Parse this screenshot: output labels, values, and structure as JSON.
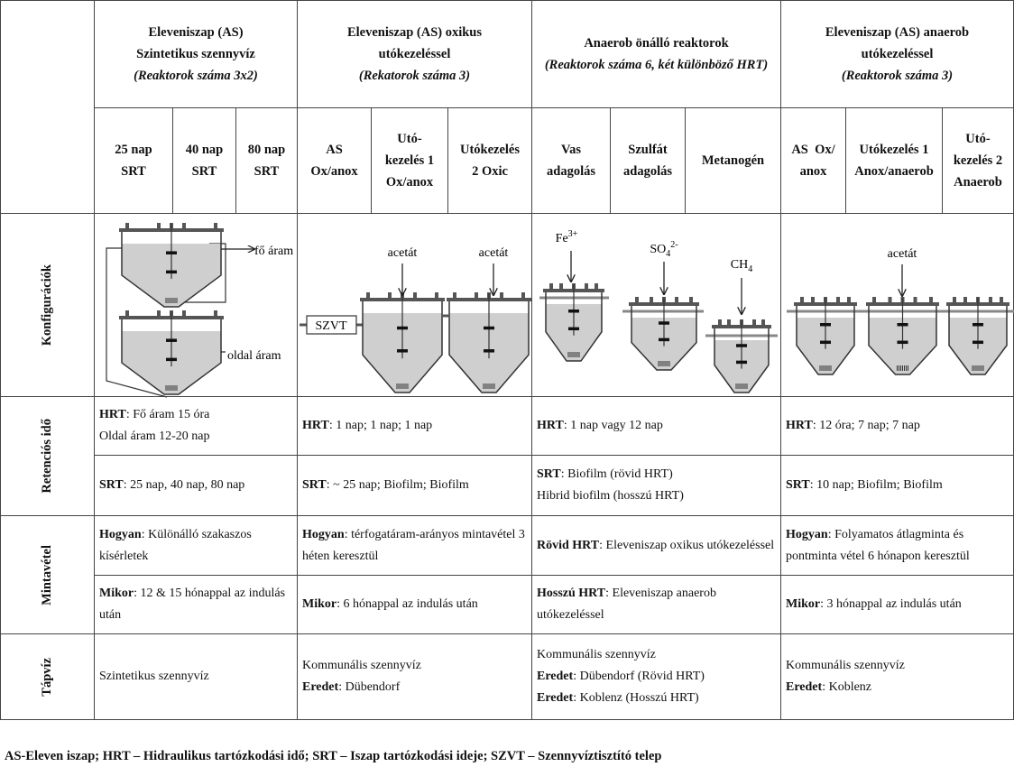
{
  "column_groups": [
    {
      "title_lines": [
        "Eleveniszap (AS)",
        "Szintetikus szennyvíz"
      ],
      "note": "(Reaktorok száma 3x2)",
      "subcolumns": [
        [
          "25 nap",
          "SRT"
        ],
        [
          "40 nap",
          "SRT"
        ],
        [
          "80 nap",
          "SRT"
        ]
      ]
    },
    {
      "title_lines": [
        "Eleveniszap (AS) oxikus",
        "utókezeléssel"
      ],
      "note": "(Rekatorok száma 3)",
      "subcolumns": [
        [
          "AS",
          "Ox/anox"
        ],
        [
          "Utó-",
          "kezelés 1",
          "Ox/anox"
        ],
        [
          "Utókezelés",
          "2 Oxic"
        ]
      ]
    },
    {
      "title_lines": [
        "Anaerob önálló reaktorok"
      ],
      "note": "(Reaktorok száma 6, két különböző HRT)",
      "subcolumns": [
        [
          "Vas",
          "adagolás"
        ],
        [
          "Szulfát",
          "adagolás"
        ],
        [
          "Metanogén"
        ]
      ]
    },
    {
      "title_lines": [
        "Eleveniszap (AS) anaerob",
        "utókezeléssel"
      ],
      "note": "(Reaktorok száma 3)",
      "subcolumns": [
        [
          "AS  Ox/",
          "anox"
        ],
        [
          "Utókezelés 1",
          "Anox/anaerob"
        ],
        [
          "Utó-",
          "kezelés 2",
          "Anaerob"
        ]
      ]
    }
  ],
  "row_labels": [
    "Konfigurációk",
    "Retenciós idő",
    "Mintavétel",
    "Tápvíz"
  ],
  "configurations": {
    "main_flow": "fő áram",
    "side_flow": "oldal áram",
    "acetate": [
      "acetát",
      "acetát",
      "acetát"
    ],
    "wwtp": "SZVT",
    "iron": {
      "base": "Fe",
      "sup": "3+"
    },
    "sulfate": {
      "base": "SO",
      "sub": "4",
      "sup": "2-"
    },
    "methane": {
      "base": "CH",
      "sub": "4"
    }
  },
  "rows": [
    {
      "cells": [
        [
          {
            "bold": "HRT",
            "text": ": Fő áram 15 óra"
          },
          {
            "text": "Oldal áram 12-20 nap"
          }
        ],
        [
          {
            "bold": "HRT",
            "text": ": 1 nap; 1 nap; 1 nap"
          }
        ],
        [
          {
            "bold": "HRT",
            "text": ": 1 nap vagy 12 nap"
          }
        ],
        [
          {
            "bold": "HRT",
            "text": ": 12 óra; 7 nap; 7 nap"
          }
        ]
      ]
    },
    {
      "cells": [
        [
          {
            "bold": "SRT",
            "text": ": 25 nap, 40 nap, 80 nap"
          }
        ],
        [
          {
            "bold": "SRT",
            "text": ": ~ 25 nap; Biofilm; Biofilm"
          }
        ],
        [
          {
            "bold": "SRT",
            "text": ": Biofilm (rövid HRT)"
          },
          {
            "text": "Hibrid biofilm (hosszú HRT)"
          }
        ],
        [
          {
            "bold": "SRT",
            "text": ": 10 nap; Biofilm; Biofilm"
          }
        ]
      ]
    },
    {
      "cells": [
        [
          {
            "bold": "Hogyan",
            "text": ": Különálló szakaszos kísérletek"
          }
        ],
        [
          {
            "bold": "Hogyan",
            "text": ": térfogatáram-arányos mintavétel 3 héten keresztül"
          }
        ],
        [
          {
            "bold": "Rövid HRT",
            "text": ": Eleveniszap oxikus utókezeléssel"
          }
        ],
        [
          {
            "bold": "Hogyan",
            "text": ": Folyamatos átlagminta és pontminta vétel 6 hónapon keresztül"
          }
        ]
      ]
    },
    {
      "cells": [
        [
          {
            "bold": "Mikor",
            "text": ": 12 & 15 hónappal az indulás után"
          }
        ],
        [
          {
            "bold": "Mikor",
            "text": ": 6 hónappal az indulás után"
          }
        ],
        [
          {
            "bold": "Hosszú HRT",
            "text": ": Eleveniszap anaerob utókezeléssel"
          }
        ],
        [
          {
            "bold": "Mikor",
            "text": ": 3 hónappal az indulás után"
          }
        ]
      ]
    },
    {
      "cells": [
        [
          {
            "text": "Szintetikus szennyvíz"
          }
        ],
        [
          {
            "text": "Kommunális szennyvíz"
          },
          {
            "bold": "Eredet",
            "text": ": Dübendorf"
          }
        ],
        [
          {
            "text": "Kommunális szennyvíz"
          },
          {
            "bold": "Eredet",
            "text": ": Dübendorf (Rövid HRT)"
          },
          {
            "bold": "Eredet",
            "text": ": Koblenz (Hosszú HRT)"
          }
        ],
        [
          {
            "text": "Kommunális szennyvíz"
          },
          {
            "bold": "Eredet",
            "text": ": Koblenz"
          }
        ]
      ]
    }
  ],
  "footer": "AS-Eleven iszap; HRT – Hidraulikus tartózkodási idő; SRT – Iszap tartózkodási ideje; SZVT – Szennyvíztisztító telep"
}
